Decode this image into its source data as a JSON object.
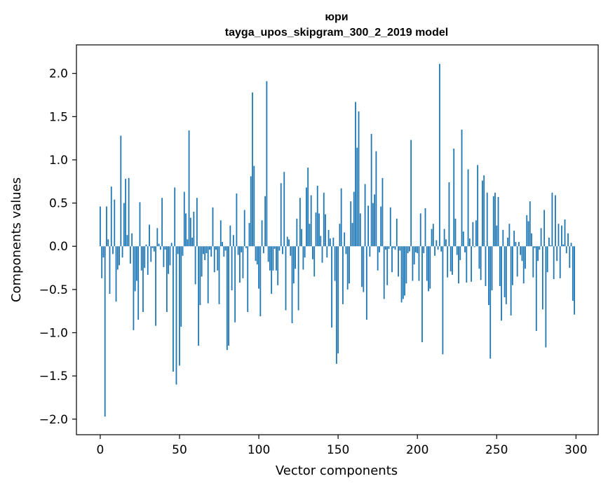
{
  "chart_data": {
    "type": "bar",
    "title": "юри",
    "subtitle": "tayga_upos_skipgram_300_2_2019 model",
    "xlabel": "Vector components",
    "ylabel": "Components values",
    "xlim": [
      -15,
      314
    ],
    "ylim": [
      -2.18,
      2.33
    ],
    "xticks": [
      0,
      50,
      100,
      150,
      200,
      250,
      300
    ],
    "xtick_labels": [
      "0",
      "50",
      "100",
      "150",
      "200",
      "250",
      "300"
    ],
    "yticks": [
      -2.0,
      -1.5,
      -1.0,
      -0.5,
      0.0,
      0.5,
      1.0,
      1.5,
      2.0
    ],
    "ytick_labels": [
      "−2.0",
      "−1.5",
      "−1.0",
      "−0.5",
      "0.0",
      "0.5",
      "1.0",
      "1.5",
      "2.0"
    ],
    "grid": false,
    "bar_color": "#1f77b4",
    "x": "indices 0..299",
    "values": [
      0.46,
      -0.37,
      -0.13,
      -1.97,
      0.46,
      0.08,
      -0.55,
      0.69,
      -0.09,
      0.54,
      -0.64,
      -0.27,
      -0.22,
      1.28,
      -0.13,
      0.5,
      0.78,
      0.13,
      0.79,
      -0.2,
      0.15,
      -0.97,
      -0.52,
      -0.4,
      -0.85,
      0.51,
      -0.28,
      -0.76,
      -0.25,
      0.02,
      -0.33,
      0.25,
      -0.18,
      -0.02,
      -0.06,
      -0.92,
      0.21,
      0.03,
      -0.04,
      0.56,
      -0.24,
      -0.04,
      -0.76,
      -0.32,
      -0.22,
      0.04,
      -1.45,
      0.68,
      -1.6,
      -0.09,
      -1.38,
      -0.93,
      -0.11,
      0.63,
      0.38,
      0.08,
      1.34,
      0.33,
      0.1,
      0.4,
      -0.44,
      0.56,
      -1.15,
      -0.68,
      -0.35,
      -0.09,
      -0.16,
      -0.08,
      -0.66,
      -0.04,
      -0.12,
      0.45,
      -0.3,
      -0.04,
      -0.28,
      -0.67,
      0.3,
      0.05,
      -0.12,
      -0.05,
      -1.2,
      -1.15,
      0.24,
      -0.51,
      0.13,
      -0.88,
      0.61,
      -0.1,
      -0.42,
      -0.07,
      -0.37,
      0.42,
      -0.02,
      -0.76,
      0.27,
      0.81,
      1.78,
      0.93,
      -0.17,
      -0.21,
      -0.49,
      -0.81,
      0.3,
      -0.08,
      0.58,
      1.91,
      -0.18,
      -0.28,
      -0.55,
      -0.28,
      -0.03,
      -0.28,
      -0.45,
      -0.05,
      0.73,
      -0.09,
      0.86,
      -0.74,
      0.11,
      0.08,
      -0.11,
      -0.89,
      -0.43,
      -0.26,
      0.32,
      -0.74,
      0.56,
      0.2,
      -0.27,
      -0.13,
      0.68,
      0.91,
      0.26,
      0.59,
      -0.15,
      -0.35,
      0.39,
      0.7,
      0.38,
      0.12,
      -0.19,
      0.62,
      0.37,
      -0.13,
      0.19,
      0.09,
      -0.94,
      0.1,
      -0.4,
      -1.36,
      -1.24,
      0.26,
      0.67,
      -0.67,
      0.16,
      -0.09,
      -0.5,
      -0.43,
      0.52,
      0.27,
      0.63,
      1.67,
      1.14,
      1.56,
      0.38,
      -0.47,
      -0.53,
      0.72,
      -0.85,
      0.47,
      -0.12,
      1.3,
      0.5,
      0.6,
      1.1,
      -0.28,
      -0.07,
      0.46,
      0.79,
      -0.61,
      -0.04,
      -0.45,
      -0.03,
      0.45,
      -0.3,
      -0.02,
      -0.04,
      0.32,
      -0.35,
      -0.05,
      -0.65,
      -0.61,
      -0.57,
      -0.43,
      -0.08,
      -0.06,
      1.23,
      -0.4,
      -0.21,
      -0.07,
      -0.08,
      -0.4,
      0.38,
      -1.11,
      -0.08,
      0.44,
      -0.4,
      -0.52,
      -0.49,
      0.2,
      0.26,
      -0.11,
      0.07,
      -0.04,
      2.11,
      -0.06,
      -1.25,
      0.2,
      0.08,
      -0.36,
      0.74,
      -0.29,
      -0.33,
      1.13,
      0.32,
      -0.1,
      -0.43,
      -0.16,
      1.35,
      0.17,
      -0.07,
      -0.42,
      0.89,
      0.09,
      -0.41,
      0.28,
      -0.01,
      0.3,
      0.94,
      -0.26,
      -0.39,
      0.76,
      0.82,
      -0.46,
      0.62,
      -0.68,
      -1.3,
      -0.51,
      0.58,
      0.62,
      0.24,
      0.57,
      -0.46,
      -0.86,
      0.19,
      -0.59,
      -0.67,
      0.1,
      0.26,
      -0.8,
      -0.45,
      0.18,
      0.05,
      -0.35,
      0.05,
      -0.1,
      -0.17,
      -0.43,
      -0.26,
      0.36,
      0.29,
      0.52,
      0.15,
      -0.36,
      -0.02,
      -0.98,
      -0.17,
      -0.04,
      0.21,
      -0.73,
      0.42,
      -1.17,
      -0.3,
      0.1,
      0.01,
      0.62,
      -0.38,
      0.59,
      -0.17,
      0.26,
      -0.37,
      0.24,
      0.02,
      0.31,
      -0.08,
      0.15,
      -0.25,
      0.04,
      -0.63,
      -0.79
    ]
  }
}
